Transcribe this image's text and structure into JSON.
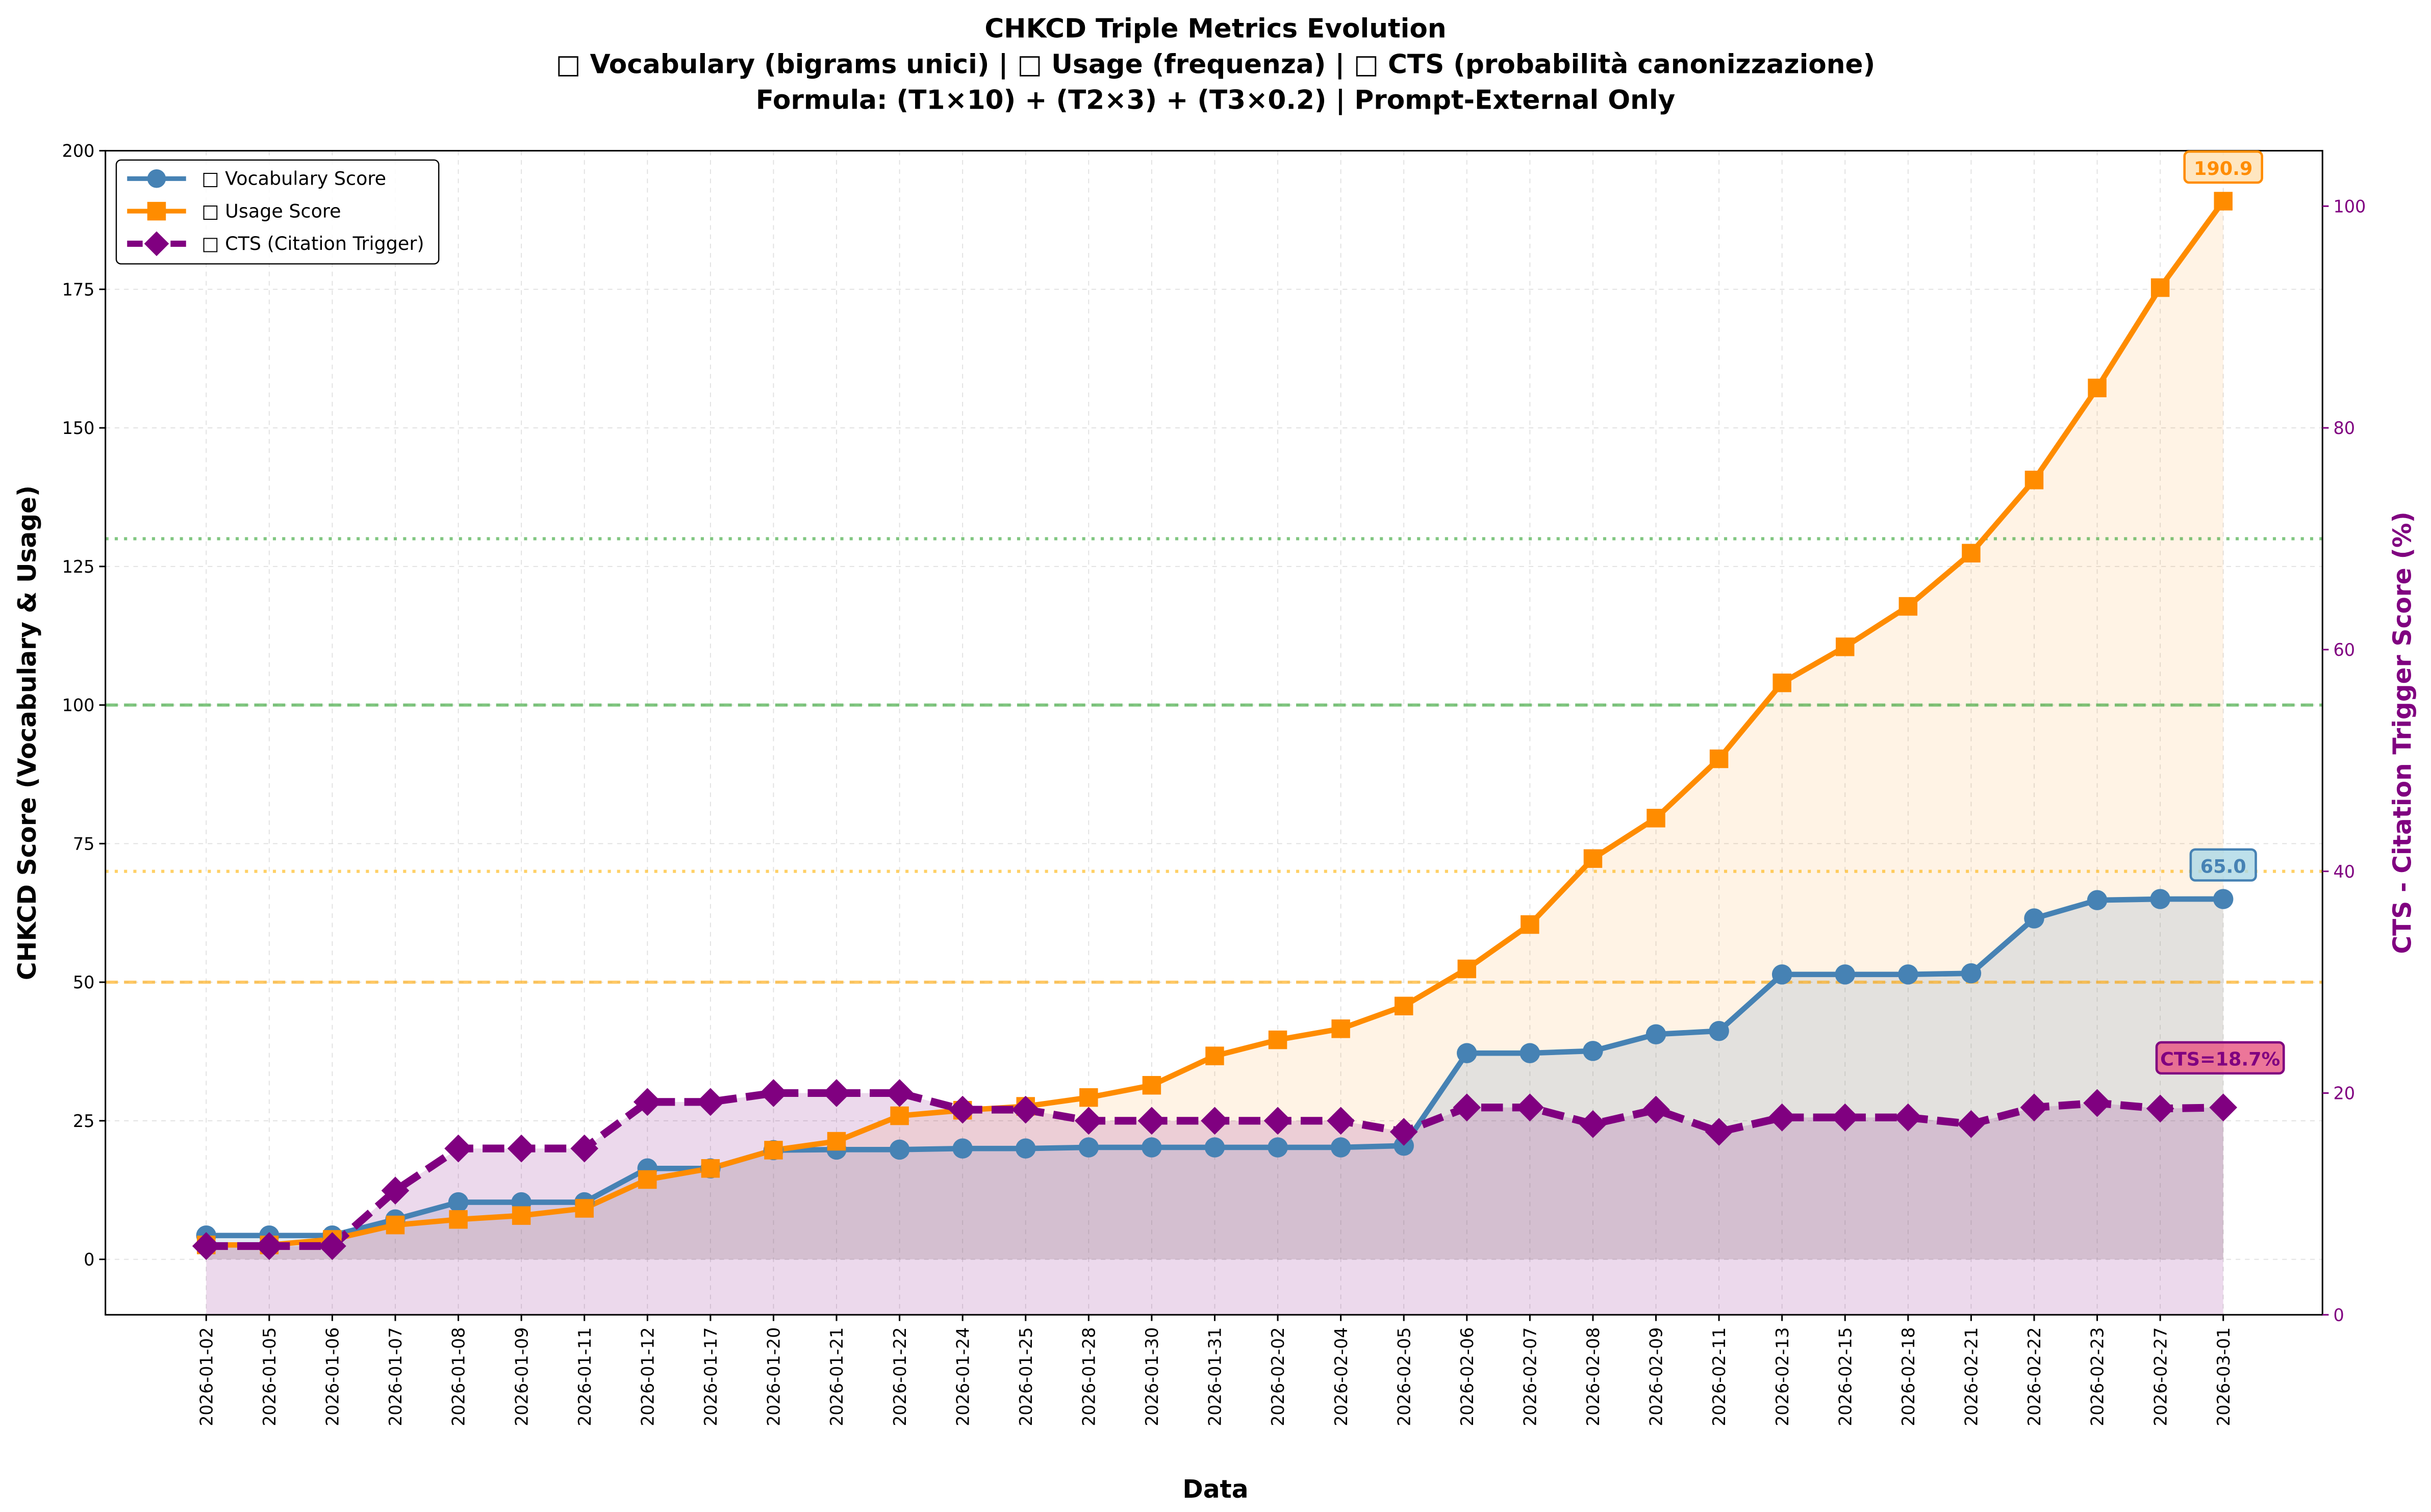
{
  "chart_data": {
    "type": "line",
    "title": "CHKCD Triple Metrics Evolution",
    "subtitle_1": "□ Vocabulary (bigrams unici) | □ Usage (frequenza) | □ CTS (probabilità canonizzazione)",
    "subtitle_2": "Formula: (T1×10) + (T2×3) + (T3×0.2) | Prompt-External Only",
    "xlabel": "Data",
    "ylabel": "CHKCD Score (Vocabulary & Usage)",
    "ylabel_right": "CTS - Citation Trigger Score (%)",
    "ylim": [
      -10,
      200
    ],
    "ylim_right": [
      0,
      105
    ],
    "yticks": [
      0,
      25,
      50,
      75,
      100,
      125,
      150,
      175,
      200
    ],
    "yticks_right": [
      0,
      20,
      40,
      60,
      80,
      100
    ],
    "grid": true,
    "legend_position": "top-left",
    "x": [
      "2026-01-02",
      "2026-01-05",
      "2026-01-06",
      "2026-01-07",
      "2026-01-08",
      "2026-01-09",
      "2026-01-11",
      "2026-01-12",
      "2026-01-17",
      "2026-01-20",
      "2026-01-21",
      "2026-01-22",
      "2026-01-24",
      "2026-01-25",
      "2026-01-28",
      "2026-01-30",
      "2026-01-31",
      "2026-02-02",
      "2026-02-04",
      "2026-02-05",
      "2026-02-06",
      "2026-02-07",
      "2026-02-08",
      "2026-02-09",
      "2026-02-11",
      "2026-02-13",
      "2026-02-15",
      "2026-02-18",
      "2026-02-21",
      "2026-02-22",
      "2026-02-23",
      "2026-02-27",
      "2026-03-01"
    ],
    "series": [
      {
        "name": "□ Vocabulary Score",
        "axis": "left",
        "color": "#4682b4",
        "marker": "circle",
        "values": [
          4.3,
          4.3,
          4.3,
          7.2,
          10.3,
          10.3,
          10.3,
          16.4,
          16.4,
          19.7,
          19.8,
          19.8,
          20.0,
          20.0,
          20.2,
          20.2,
          20.2,
          20.2,
          20.2,
          20.5,
          37.2,
          37.2,
          37.6,
          40.6,
          41.2,
          51.4,
          51.4,
          51.4,
          51.6,
          61.5,
          64.8,
          65.0,
          65.0
        ]
      },
      {
        "name": "□ Usage Score",
        "axis": "left",
        "color": "#ff8c00",
        "marker": "square",
        "values": [
          2.6,
          2.6,
          3.6,
          6.2,
          7.2,
          7.9,
          9.2,
          14.4,
          16.4,
          19.7,
          21.3,
          25.9,
          26.9,
          27.6,
          29.2,
          31.4,
          36.7,
          39.6,
          41.6,
          45.7,
          52.4,
          60.4,
          72.3,
          79.6,
          90.3,
          104.0,
          110.5,
          117.8,
          127.4,
          140.6,
          157.2,
          175.3,
          190.9
        ]
      },
      {
        "name": "□ CTS (Citation Trigger)",
        "axis": "right",
        "color": "#800080",
        "marker": "diamond",
        "values": [
          6.2,
          6.2,
          6.2,
          11.2,
          15.0,
          15.0,
          15.0,
          19.2,
          19.2,
          20.0,
          20.0,
          20.0,
          18.5,
          18.5,
          17.5,
          17.5,
          17.5,
          17.5,
          17.5,
          16.5,
          18.7,
          18.7,
          17.2,
          18.5,
          16.5,
          17.8,
          17.8,
          17.8,
          17.2,
          18.7,
          19.1,
          18.6,
          18.7
        ]
      }
    ],
    "reference_lines": [
      {
        "axis": "right",
        "value": 70,
        "style": "dotted",
        "color": "#2ca02c"
      },
      {
        "axis": "left",
        "value": 100,
        "style": "dashed",
        "color": "#2ca02c"
      },
      {
        "axis": "right",
        "value": 40,
        "style": "dotted",
        "color": "#ffb000"
      },
      {
        "axis": "left",
        "value": 50,
        "style": "dashed",
        "color": "#ffa500"
      }
    ],
    "annotations": [
      {
        "text": "190.9",
        "series": 1,
        "color": "#ff8c00",
        "box": "#ffe0b0"
      },
      {
        "text": "65.0",
        "series": 0,
        "color": "#4682b4",
        "box": "#add8e6"
      },
      {
        "text": "CTS=18.7%",
        "series": 2,
        "color": "#800080",
        "box": "#e75480"
      }
    ]
  }
}
